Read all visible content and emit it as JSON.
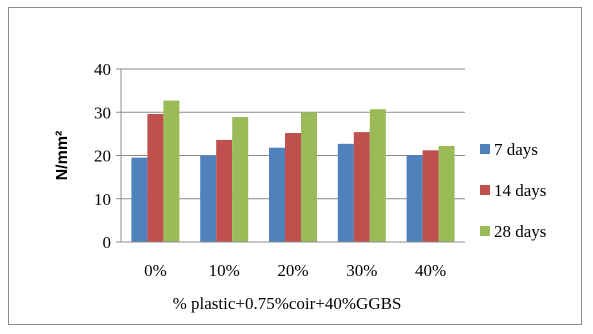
{
  "chart_data": {
    "type": "bar",
    "title": "",
    "xlabel": "% plastic+0.75%coir+40%GGBS",
    "ylabel": "N/mm²",
    "ylim": [
      0,
      40
    ],
    "yticks": [
      0,
      10,
      20,
      30,
      40
    ],
    "grid": true,
    "legend_position": "right",
    "categories": [
      "0%",
      "10%",
      "20%",
      "30%",
      "40%"
    ],
    "series": [
      {
        "name": "7 days",
        "color": "#4f81bd",
        "values": [
          19.5,
          20.0,
          21.8,
          22.7,
          20.1
        ]
      },
      {
        "name": "14 days",
        "color": "#c0504d",
        "values": [
          29.6,
          23.6,
          25.2,
          25.4,
          21.2
        ]
      },
      {
        "name": "28 days",
        "color": "#9bbb59",
        "values": [
          32.7,
          28.9,
          30.0,
          30.7,
          22.2
        ]
      }
    ]
  }
}
